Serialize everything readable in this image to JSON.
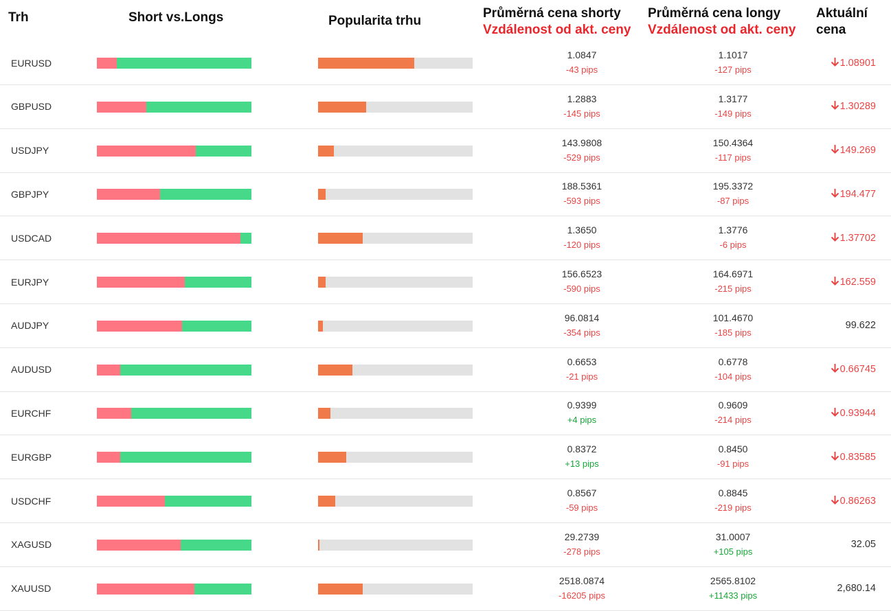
{
  "headers": {
    "market": "Trh",
    "short_vs_long": "Short vs.Longs",
    "popularity": "Popularita trhu",
    "avg_short": "Průměrná cena shorty",
    "avg_short_sub": "Vzdálenost od akt. ceny",
    "avg_long": "Průměrná cena longy",
    "avg_long_sub": "Vzdálenost od akt. ceny",
    "current_line1": "Aktuální",
    "current_line2": "cena"
  },
  "colors": {
    "short": "#ff7683",
    "long": "#46d98a",
    "popularity": "#f07a4a",
    "negative": "#e84545",
    "positive": "#18a838"
  },
  "rows": [
    {
      "pair": "EURUSD",
      "short_pct": 13,
      "popularity_pct": 62,
      "avg_short": "1.0847",
      "short_pips": "-43 pips",
      "avg_long": "1.1017",
      "long_pips": "-127 pips",
      "current": "1.08901",
      "trend": "down"
    },
    {
      "pair": "GBPUSD",
      "short_pct": 32,
      "popularity_pct": 31,
      "avg_short": "1.2883",
      "short_pips": "-145 pips",
      "avg_long": "1.3177",
      "long_pips": "-149 pips",
      "current": "1.30289",
      "trend": "down"
    },
    {
      "pair": "USDJPY",
      "short_pct": 64,
      "popularity_pct": 10,
      "avg_short": "143.9808",
      "short_pips": "-529 pips",
      "avg_long": "150.4364",
      "long_pips": "-117 pips",
      "current": "149.269",
      "trend": "down"
    },
    {
      "pair": "GBPJPY",
      "short_pct": 41,
      "popularity_pct": 5,
      "avg_short": "188.5361",
      "short_pips": "-593 pips",
      "avg_long": "195.3372",
      "long_pips": "-87 pips",
      "current": "194.477",
      "trend": "down"
    },
    {
      "pair": "USDCAD",
      "short_pct": 93,
      "popularity_pct": 29,
      "avg_short": "1.3650",
      "short_pips": "-120 pips",
      "avg_long": "1.3776",
      "long_pips": "-6 pips",
      "current": "1.37702",
      "trend": "down"
    },
    {
      "pair": "EURJPY",
      "short_pct": 57,
      "popularity_pct": 5,
      "avg_short": "156.6523",
      "short_pips": "-590 pips",
      "avg_long": "164.6971",
      "long_pips": "-215 pips",
      "current": "162.559",
      "trend": "down"
    },
    {
      "pair": "AUDJPY",
      "short_pct": 55,
      "popularity_pct": 3,
      "avg_short": "96.0814",
      "short_pips": "-354 pips",
      "avg_long": "101.4670",
      "long_pips": "-185 pips",
      "current": "99.622",
      "trend": "flat"
    },
    {
      "pair": "AUDUSD",
      "short_pct": 15,
      "popularity_pct": 22,
      "avg_short": "0.6653",
      "short_pips": "-21 pips",
      "avg_long": "0.6778",
      "long_pips": "-104 pips",
      "current": "0.66745",
      "trend": "down"
    },
    {
      "pair": "EURCHF",
      "short_pct": 22,
      "popularity_pct": 8,
      "avg_short": "0.9399",
      "short_pips": "+4 pips",
      "avg_long": "0.9609",
      "long_pips": "-214 pips",
      "current": "0.93944",
      "trend": "down"
    },
    {
      "pair": "EURGBP",
      "short_pct": 15,
      "popularity_pct": 18,
      "avg_short": "0.8372",
      "short_pips": "+13 pips",
      "avg_long": "0.8450",
      "long_pips": "-91 pips",
      "current": "0.83585",
      "trend": "down"
    },
    {
      "pair": "USDCHF",
      "short_pct": 44,
      "popularity_pct": 11,
      "avg_short": "0.8567",
      "short_pips": "-59 pips",
      "avg_long": "0.8845",
      "long_pips": "-219 pips",
      "current": "0.86263",
      "trend": "down"
    },
    {
      "pair": "XAGUSD",
      "short_pct": 54,
      "popularity_pct": 1,
      "avg_short": "29.2739",
      "short_pips": "-278 pips",
      "avg_long": "31.0007",
      "long_pips": "+105 pips",
      "current": "32.05",
      "trend": "flat"
    },
    {
      "pair": "XAUUSD",
      "short_pct": 63,
      "popularity_pct": 29,
      "avg_short": "2518.0874",
      "short_pips": "-16205 pips",
      "avg_long": "2565.8102",
      "long_pips": "+11433 pips",
      "current": "2,680.14",
      "trend": "flat"
    }
  ]
}
